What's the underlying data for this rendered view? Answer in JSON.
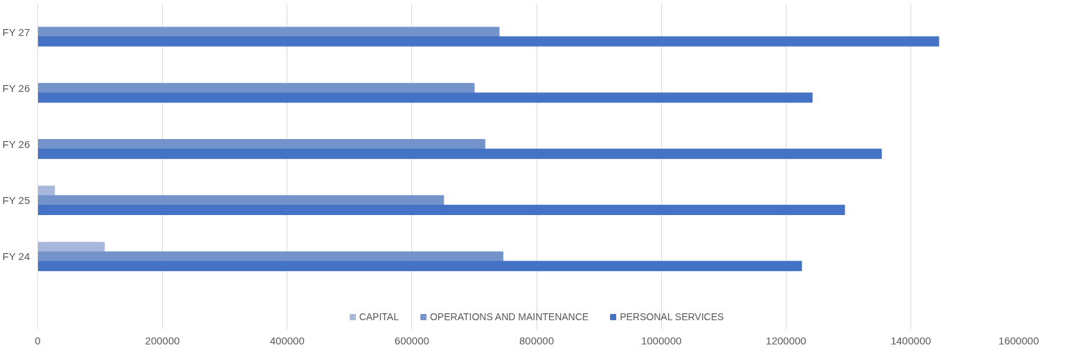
{
  "chart_data": {
    "type": "bar",
    "orientation": "horizontal",
    "categories": [
      "FY 27",
      "FY 26",
      "FY 26",
      "FY 25",
      "FY 24"
    ],
    "series": [
      {
        "name": "CAPITAL",
        "color": "#a7b8dc",
        "values": [
          null,
          null,
          null,
          27000,
          107000
        ]
      },
      {
        "name": "OPERATIONS AND MAINTENANCE",
        "color": "#7394cb",
        "values": [
          740000,
          700000,
          717000,
          651000,
          746000
        ]
      },
      {
        "name": "PERSONAL SERVICES",
        "color": "#4472c4",
        "values": [
          1445000,
          1242000,
          1353000,
          1294000,
          1225000
        ]
      }
    ],
    "xlim": [
      0,
      1600000
    ],
    "xticks": [
      0,
      200000,
      400000,
      600000,
      800000,
      1000000,
      1200000,
      1400000,
      1600000
    ],
    "grid": "x",
    "legend": "bottom"
  }
}
